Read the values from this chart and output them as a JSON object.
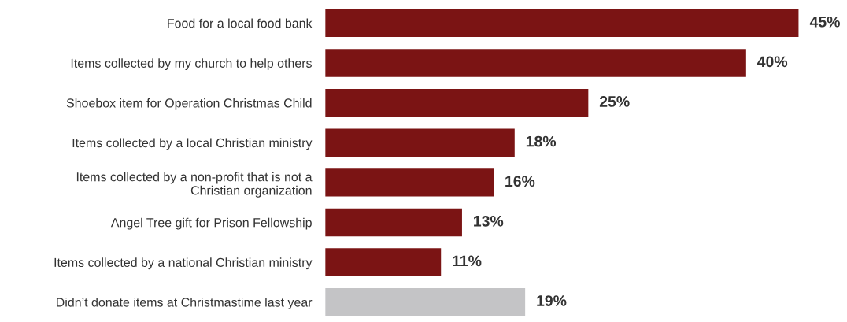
{
  "chart_data": {
    "type": "bar",
    "orientation": "horizontal",
    "value_labels": [
      "45%",
      "40%",
      "25%",
      "18%",
      "16%",
      "13%",
      "11%",
      "19%"
    ],
    "categories": [
      "Food for a local food bank",
      "Items collected by my church to help others",
      "Shoebox item for Operation Christmas Child",
      "Items collected by a local Christian ministry",
      "Items collected by a non-profit that is not a\nChristian organization",
      "Angel Tree gift for Prison Fellowship",
      "Items collected by a national Christian ministry",
      "Didn’t donate items at Christmastime last year"
    ],
    "values": [
      45,
      40,
      25,
      18,
      16,
      13,
      11,
      19
    ],
    "colors": [
      "#7b1414",
      "#7b1414",
      "#7b1414",
      "#7b1414",
      "#7b1414",
      "#7b1414",
      "#7b1414",
      "#c4c4c6"
    ]
  }
}
